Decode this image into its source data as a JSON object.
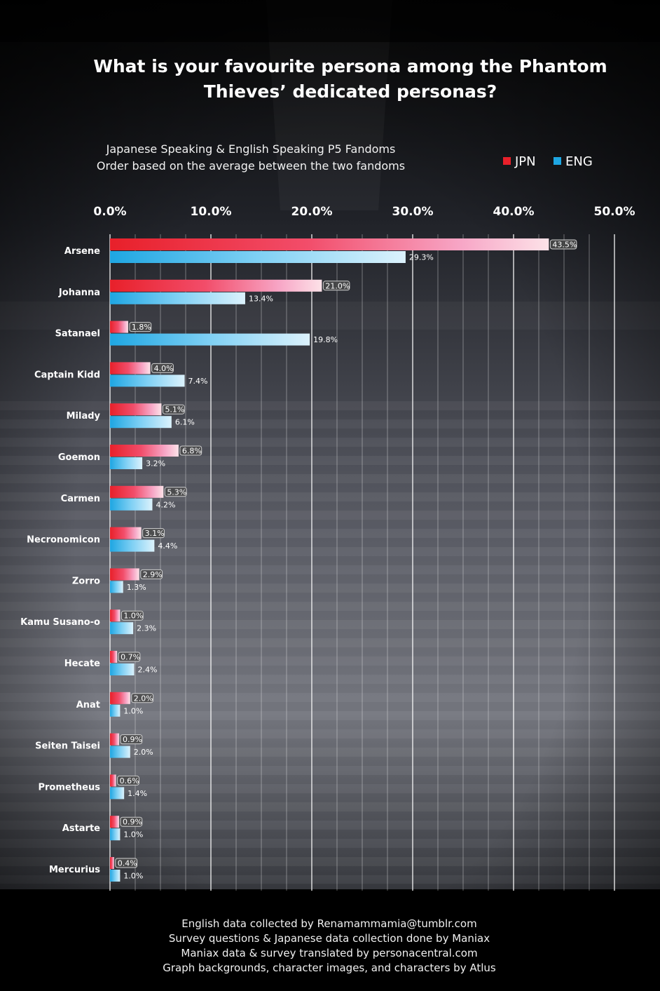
{
  "title_lines": [
    "What is your favourite persona among the Phantom",
    "Thieves’ dedicated personas?"
  ],
  "subtitle_lines": [
    "Japanese Speaking & English Speaking P5 Fandoms",
    "Order based on the average between the two fandoms"
  ],
  "legend": [
    {
      "label": "JPN",
      "color": "#e8202a"
    },
    {
      "label": "ENG",
      "color": "#1ea6e2"
    }
  ],
  "footer_lines": [
    "English data collected by Renamammamia@tumblr.com",
    "Survey questions & Japanese data collection done by Maniax",
    "Maniax data & survey translated by personacentral.com",
    "Graph backgrounds, character images, and characters by Atlus"
  ],
  "chart_data": {
    "type": "bar",
    "orientation": "horizontal",
    "xlim": [
      0,
      50
    ],
    "xticks": [
      "0.0%",
      "10.0%",
      "20.0%",
      "30.0%",
      "40.0%",
      "50.0%"
    ],
    "grid": true,
    "legend_position": "top-right",
    "categories": [
      "Arsene",
      "Johanna",
      "Satanael",
      "Captain Kidd",
      "Milady",
      "Goemon",
      "Carmen",
      "Necronomicon",
      "Zorro",
      "Kamu Susano-o",
      "Hecate",
      "Anat",
      "Seiten Taisei",
      "Prometheus",
      "Astarte",
      "Mercurius"
    ],
    "series": [
      {
        "name": "JPN",
        "color": "#e8202a",
        "values": [
          43.5,
          21.0,
          1.8,
          4.0,
          5.1,
          6.8,
          5.3,
          3.1,
          2.9,
          1.0,
          0.7,
          2.0,
          0.9,
          0.6,
          0.9,
          0.4
        ],
        "labels": [
          "43.5%",
          "21.0%",
          "1.8%",
          "4.0%",
          "5.1%",
          "6.8%",
          "5.3%",
          "3.1%",
          "2.9%",
          "1.0%",
          "0.7%",
          "2.0%",
          "0.9%",
          "0.6%",
          "0.9%",
          "0.4%"
        ]
      },
      {
        "name": "ENG",
        "color": "#1ea6e2",
        "values": [
          29.3,
          13.4,
          19.8,
          7.4,
          6.1,
          3.2,
          4.2,
          4.4,
          1.3,
          2.3,
          2.4,
          1.0,
          2.0,
          1.4,
          1.0,
          1.0
        ],
        "labels": [
          "29.3%",
          "13.4%",
          "19.8%",
          "7.4%",
          "6.1%",
          "3.2%",
          "4.2%",
          "4.4%",
          "1.3%",
          "2.3%",
          "2.4%",
          "1.0%",
          "2.0%",
          "1.4%",
          "1.0%",
          "1.0%"
        ]
      }
    ]
  }
}
